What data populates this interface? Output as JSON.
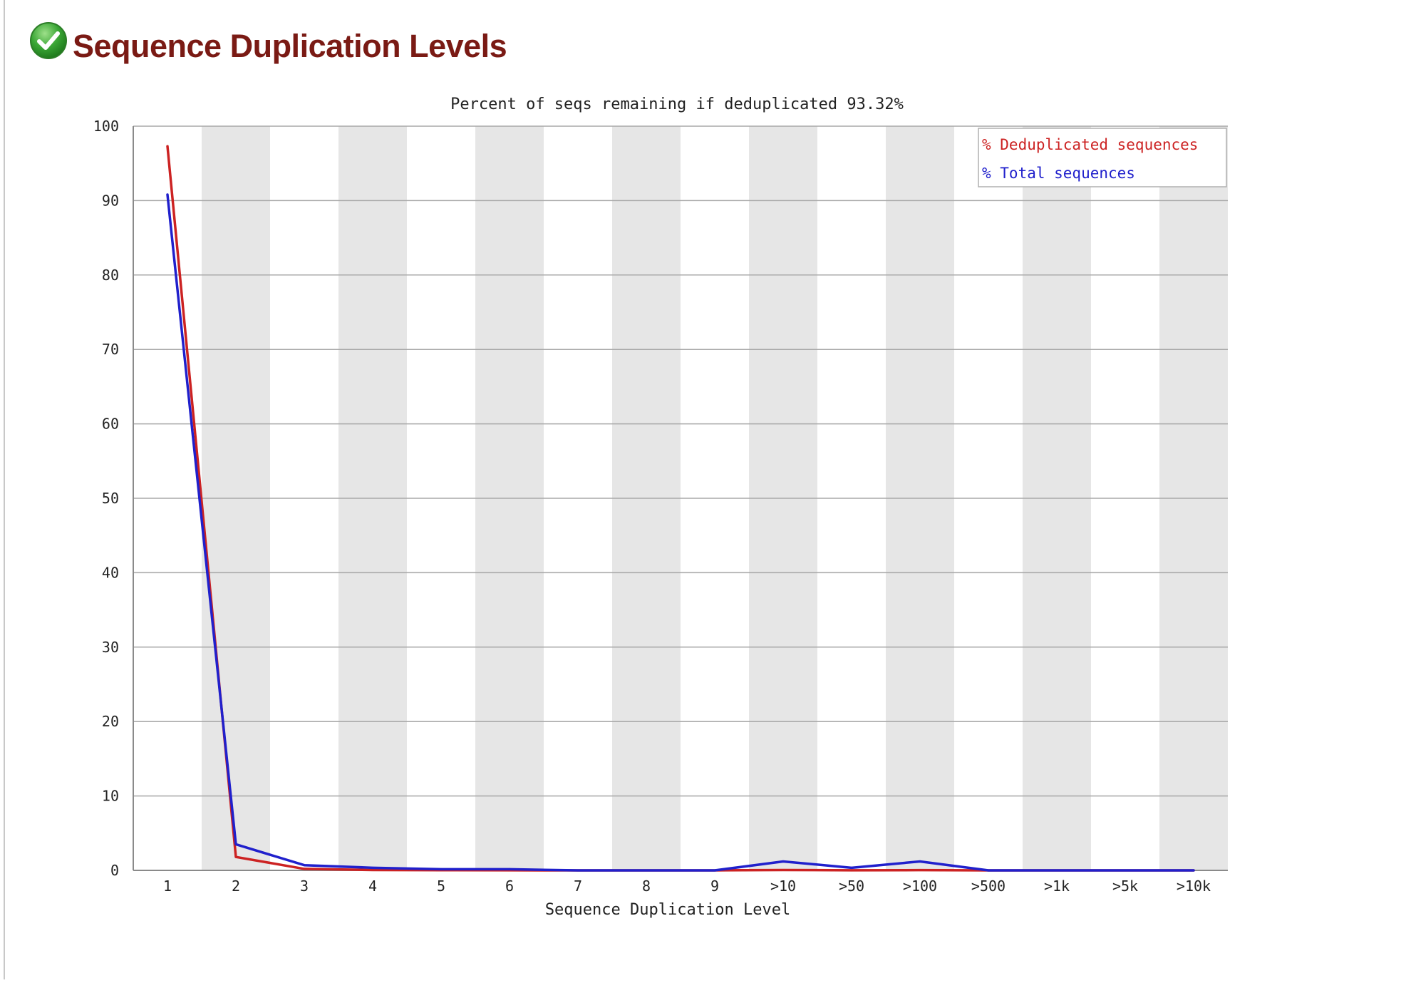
{
  "header": {
    "title": "Sequence Duplication Levels",
    "status_icon": "check-circle-icon",
    "status_color": "#3aa635"
  },
  "chart_data": {
    "type": "line",
    "title": "Percent of seqs remaining if deduplicated 93.32%",
    "xlabel": "Sequence Duplication Level",
    "ylabel": "",
    "ylim": [
      0,
      100
    ],
    "yticks": [
      "0",
      "10",
      "20",
      "30",
      "40",
      "50",
      "60",
      "70",
      "80",
      "90",
      "100"
    ],
    "categories": [
      "1",
      "2",
      "3",
      "4",
      "5",
      "6",
      "7",
      "8",
      "9",
      ">10",
      ">50",
      ">100",
      ">500",
      ">1k",
      ">5k",
      ">10k"
    ],
    "series": [
      {
        "name": "% Deduplicated sequences",
        "color": "#cc2222",
        "values": [
          97.3,
          1.8,
          0.2,
          0.05,
          0.02,
          0.01,
          0.0,
          0.0,
          0.0,
          0.05,
          0.01,
          0.03,
          0.0,
          0.0,
          0.0,
          0.0
        ]
      },
      {
        "name": "% Total sequences",
        "color": "#2020cc",
        "values": [
          90.8,
          3.5,
          0.7,
          0.35,
          0.15,
          0.15,
          0.0,
          0.0,
          0.0,
          1.2,
          0.35,
          1.2,
          0.0,
          0.0,
          0.0,
          0.0
        ]
      }
    ],
    "grid": true,
    "alternating_bands": true,
    "band_color": "#e6e6e6",
    "legend_position": "top-right"
  }
}
